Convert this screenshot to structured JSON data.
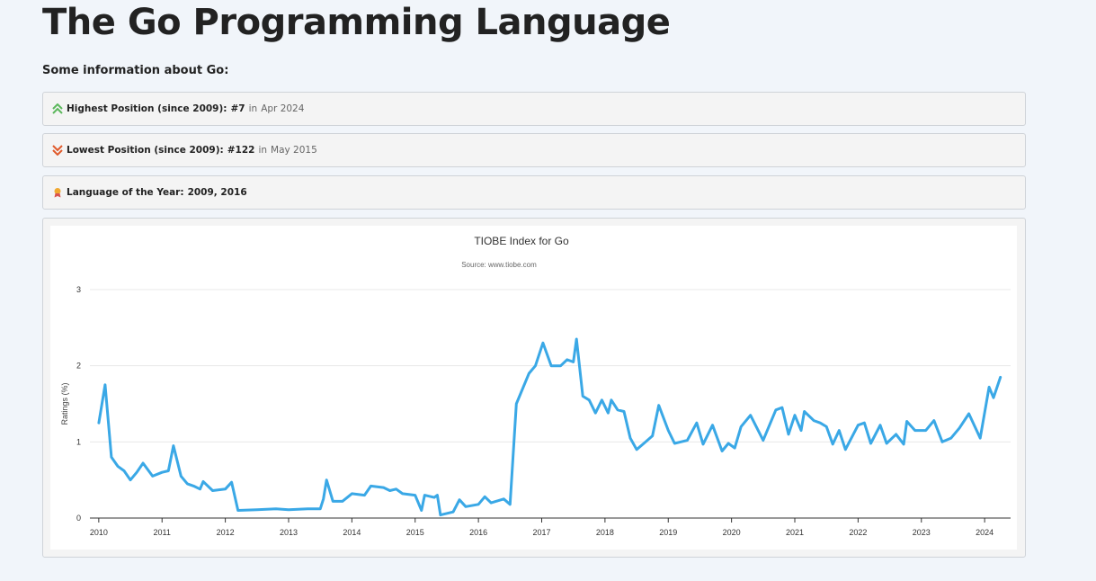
{
  "header": {
    "title": "The Go Programming Language",
    "intro": "Some information about Go:"
  },
  "info": [
    {
      "label": "Highest Position (since 2009):",
      "value": "#7",
      "sep": "in",
      "date": "Apr 2024"
    },
    {
      "label": "Lowest Position (since 2009):",
      "value": "#122",
      "sep": "in",
      "date": "May 2015"
    },
    {
      "label": "Language of the Year:",
      "value": "2009, 2016"
    }
  ],
  "chart_data": {
    "type": "line",
    "title": "TIOBE Index for Go",
    "subtitle": "Source: www.tiobe.com",
    "y_label": "Ratings (%)",
    "xlim": [
      2009.86,
      2024.41
    ],
    "xticks": [
      2010,
      2011,
      2012,
      2013,
      2014,
      2015,
      2016,
      2017,
      2018,
      2019,
      2020,
      2021,
      2022,
      2023,
      2024
    ],
    "ylim": [
      0,
      3
    ],
    "yticks": [
      0,
      1,
      2,
      3
    ],
    "grid": true,
    "series": [
      {
        "name": "Go",
        "color": "#3aa8e6",
        "x": [
          2010.0,
          2010.1,
          2010.2,
          2010.3,
          2010.4,
          2010.5,
          2010.6,
          2010.7,
          2010.85,
          2011.0,
          2011.1,
          2011.18,
          2011.3,
          2011.4,
          2011.5,
          2011.6,
          2011.65,
          2011.8,
          2012.0,
          2012.1,
          2012.2,
          2012.5,
          2012.8,
          2013.0,
          2013.3,
          2013.5,
          2013.55,
          2013.6,
          2013.7,
          2013.85,
          2014.0,
          2014.2,
          2014.3,
          2014.5,
          2014.6,
          2014.7,
          2014.8,
          2015.0,
          2015.1,
          2015.15,
          2015.3,
          2015.35,
          2015.4,
          2015.6,
          2015.7,
          2015.8,
          2016.0,
          2016.1,
          2016.2,
          2016.4,
          2016.5,
          2016.6,
          2016.8,
          2016.9,
          2017.02,
          2017.15,
          2017.3,
          2017.4,
          2017.5,
          2017.55,
          2017.65,
          2017.75,
          2017.85,
          2017.95,
          2018.05,
          2018.1,
          2018.2,
          2018.3,
          2018.4,
          2018.5,
          2018.6,
          2018.75,
          2018.85,
          2019.0,
          2019.1,
          2019.2,
          2019.3,
          2019.45,
          2019.55,
          2019.7,
          2019.85,
          2019.95,
          2020.05,
          2020.15,
          2020.3,
          2020.5,
          2020.7,
          2020.8,
          2020.9,
          2021.0,
          2021.1,
          2021.15,
          2021.3,
          2021.4,
          2021.5,
          2021.6,
          2021.7,
          2021.8,
          2022.0,
          2022.1,
          2022.2,
          2022.35,
          2022.45,
          2022.6,
          2022.72,
          2022.77,
          2022.9,
          2023.07,
          2023.2,
          2023.33,
          2023.47,
          2023.6,
          2023.75,
          2023.93,
          2024.07,
          2024.14,
          2024.25
        ],
        "values": [
          1.25,
          1.75,
          0.8,
          0.68,
          0.62,
          0.5,
          0.6,
          0.72,
          0.55,
          0.6,
          0.62,
          0.95,
          0.55,
          0.45,
          0.42,
          0.38,
          0.48,
          0.36,
          0.38,
          0.47,
          0.1,
          0.11,
          0.12,
          0.11,
          0.12,
          0.12,
          0.25,
          0.5,
          0.22,
          0.22,
          0.32,
          0.3,
          0.42,
          0.4,
          0.36,
          0.38,
          0.32,
          0.3,
          0.1,
          0.3,
          0.27,
          0.3,
          0.04,
          0.08,
          0.24,
          0.15,
          0.18,
          0.28,
          0.2,
          0.25,
          0.18,
          1.5,
          1.9,
          2.0,
          2.3,
          2.0,
          2.0,
          2.08,
          2.05,
          2.35,
          1.6,
          1.55,
          1.38,
          1.55,
          1.38,
          1.55,
          1.42,
          1.4,
          1.05,
          0.9,
          0.97,
          1.08,
          1.48,
          1.15,
          0.98,
          1.0,
          1.02,
          1.25,
          0.97,
          1.22,
          0.88,
          0.98,
          0.92,
          1.2,
          1.35,
          1.02,
          1.42,
          1.45,
          1.1,
          1.35,
          1.15,
          1.4,
          1.28,
          1.25,
          1.2,
          0.97,
          1.15,
          0.9,
          1.22,
          1.25,
          0.98,
          1.22,
          0.98,
          1.1,
          0.97,
          1.27,
          1.15,
          1.15,
          1.28,
          1.0,
          1.05,
          1.18,
          1.37,
          1.05,
          1.72,
          1.58,
          1.85
        ]
      }
    ]
  }
}
